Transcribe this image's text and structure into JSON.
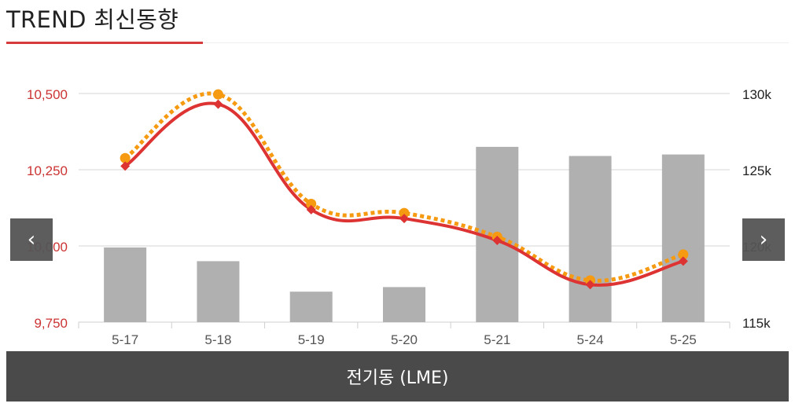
{
  "header": {
    "title": "TREND 최신동향"
  },
  "nav": {
    "prev_icon": "chevron-left-icon",
    "next_icon": "chevron-right-icon"
  },
  "footer": {
    "label": "전기동 (LME)"
  },
  "colors": {
    "bar": "#b0b0b0",
    "line_primary": "#dd3333",
    "line_secondary": "#f59a11",
    "left_axis_text": "#cc3333",
    "right_axis_text": "#222222"
  },
  "chart_data": {
    "type": "bar+line",
    "categories": [
      "5-17",
      "5-18",
      "5-19",
      "5-20",
      "5-21",
      "5-24",
      "5-25"
    ],
    "left_axis": {
      "ylim": [
        9750,
        10500
      ],
      "ticks": [
        "9,750",
        "10,000",
        "10,250",
        "10,500"
      ]
    },
    "right_axis": {
      "ylim": [
        115000,
        130000
      ],
      "ticks": [
        "115k",
        "120k",
        "125k",
        "130k"
      ]
    },
    "bars": {
      "axis": "right",
      "values": [
        119900,
        119000,
        117000,
        117300,
        126500,
        125900,
        126000
      ]
    },
    "lines": [
      {
        "axis": "left",
        "style": "solid",
        "marker": "diamond",
        "values": [
          10262,
          10465,
          10119,
          10090,
          10018,
          9873,
          9950
        ]
      },
      {
        "axis": "left",
        "style": "dotted",
        "marker": "circle",
        "values": [
          10288,
          10497,
          10138,
          10108,
          10030,
          9887,
          9972
        ]
      }
    ],
    "grid": true
  }
}
